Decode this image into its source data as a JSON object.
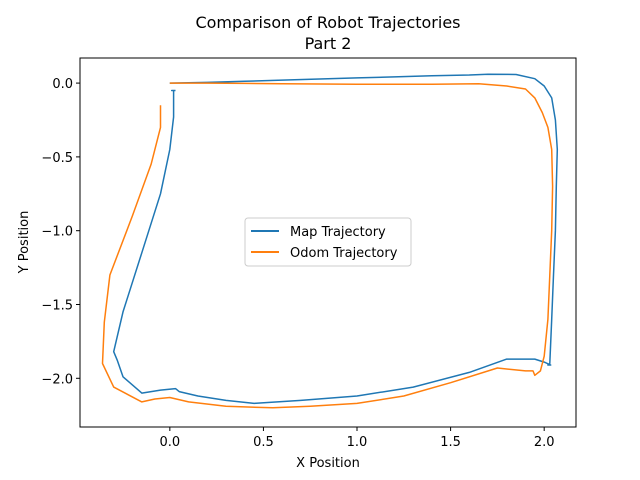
{
  "chart_data": {
    "type": "line",
    "title_line1": "Comparison of Robot Trajectories",
    "title_line2": "Part 2",
    "xlabel": "X Position",
    "ylabel": "Y Position",
    "xlim": [
      -0.48,
      2.17
    ],
    "ylim": [
      -2.33,
      0.17
    ],
    "xticks": [
      0.0,
      0.5,
      1.0,
      1.5,
      2.0
    ],
    "xtick_labels": [
      "0.0",
      "0.5",
      "1.0",
      "1.5",
      "2.0"
    ],
    "yticks": [
      0.0,
      -0.5,
      -1.0,
      -1.5,
      -2.0
    ],
    "ytick_labels": [
      "0.0",
      "−0.5",
      "−1.0",
      "−1.5",
      "−2.0"
    ],
    "legend_position": "center",
    "grid": false,
    "series": [
      {
        "name": "Map Trajectory",
        "color": "#1f77b4",
        "x": [
          0.0,
          0.2,
          0.4,
          0.6,
          0.8,
          1.0,
          1.2,
          1.4,
          1.6,
          1.7,
          1.85,
          1.95,
          2.0,
          2.04,
          2.06,
          2.07,
          2.065,
          2.06,
          2.05,
          2.04,
          2.03,
          2.02,
          2.035,
          2.0,
          1.95,
          1.8,
          1.6,
          1.3,
          1.0,
          0.7,
          0.45,
          0.3,
          0.15,
          0.05,
          0.03,
          -0.05,
          -0.15,
          -0.25,
          -0.28,
          -0.3,
          -0.25,
          -0.15,
          -0.05,
          0.0,
          0.02,
          0.02,
          0.01,
          0.03
        ],
        "y": [
          0.0,
          0.005,
          0.012,
          0.02,
          0.028,
          0.035,
          0.042,
          0.05,
          0.055,
          0.06,
          0.058,
          0.03,
          -0.02,
          -0.1,
          -0.25,
          -0.45,
          -0.7,
          -1.0,
          -1.3,
          -1.6,
          -1.9,
          -1.91,
          -1.91,
          -1.89,
          -1.87,
          -1.87,
          -1.96,
          -2.06,
          -2.12,
          -2.15,
          -2.17,
          -2.15,
          -2.12,
          -2.09,
          -2.07,
          -2.08,
          -2.1,
          -1.99,
          -1.88,
          -1.82,
          -1.55,
          -1.15,
          -0.75,
          -0.45,
          -0.23,
          -0.05,
          -0.05,
          -0.05
        ]
      },
      {
        "name": "Odom Trajectory",
        "color": "#ff7f0e",
        "x": [
          0.0,
          0.2,
          0.4,
          0.6,
          0.8,
          1.0,
          1.2,
          1.4,
          1.65,
          1.8,
          1.9,
          1.95,
          1.99,
          2.02,
          2.04,
          2.045,
          2.04,
          2.03,
          2.02,
          2.0,
          1.98,
          1.95,
          1.94,
          1.9,
          1.75,
          1.5,
          1.25,
          1.0,
          0.75,
          0.55,
          0.3,
          0.1,
          0.0,
          -0.08,
          -0.15,
          -0.3,
          -0.36,
          -0.35,
          -0.32,
          -0.2,
          -0.1,
          -0.05,
          -0.05,
          -0.05
        ],
        "y": [
          0.0,
          0.0,
          -0.002,
          -0.004,
          -0.006,
          -0.008,
          -0.008,
          -0.008,
          -0.005,
          -0.02,
          -0.04,
          -0.1,
          -0.2,
          -0.3,
          -0.45,
          -0.7,
          -1.0,
          -1.3,
          -1.6,
          -1.85,
          -1.95,
          -1.98,
          -1.95,
          -1.95,
          -1.93,
          -2.03,
          -2.12,
          -2.17,
          -2.19,
          -2.2,
          -2.19,
          -2.16,
          -2.13,
          -2.14,
          -2.16,
          -2.06,
          -1.9,
          -1.62,
          -1.3,
          -0.9,
          -0.55,
          -0.3,
          -0.15,
          -0.15
        ]
      }
    ]
  }
}
